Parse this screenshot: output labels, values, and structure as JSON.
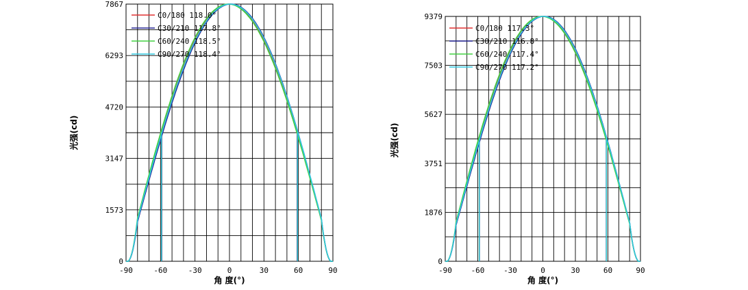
{
  "chart_data": [
    {
      "type": "line",
      "title": "",
      "xlabel": "角 度(°)",
      "ylabel": "光强(cd)",
      "xlim": [
        -90,
        90
      ],
      "ylim": [
        0,
        7867
      ],
      "x_ticks": [
        -90,
        -60,
        -30,
        0,
        30,
        60,
        90
      ],
      "y_ticks": [
        0,
        1573,
        3147,
        4720,
        6293,
        7867
      ],
      "grid": true,
      "legend_position": "top-left",
      "peak": 7867,
      "series": [
        {
          "name": "C0/180 118.0°",
          "color": "#e03030",
          "beam_angle": 118.0
        },
        {
          "name": "C30/210 117.8°",
          "color": "#202090",
          "beam_angle": 117.8
        },
        {
          "name": "C60/240 118.5°",
          "color": "#40d040",
          "beam_angle": 118.5
        },
        {
          "name": "C90/270 118.4°",
          "color": "#30c8e0",
          "beam_angle": 118.4
        }
      ]
    },
    {
      "type": "line",
      "title": "",
      "xlabel": "角 度(°)",
      "ylabel": "光强(cd)",
      "xlim": [
        -90,
        90
      ],
      "ylim": [
        0,
        9379
      ],
      "x_ticks": [
        -90,
        -60,
        -30,
        0,
        30,
        60,
        90
      ],
      "y_ticks": [
        0,
        1876,
        3751,
        5627,
        7503,
        9379
      ],
      "grid": true,
      "legend_position": "top-left",
      "peak": 9379,
      "series": [
        {
          "name": "C0/180 117.3°",
          "color": "#e03030",
          "beam_angle": 117.3
        },
        {
          "name": "C30/210 116.8°",
          "color": "#202090",
          "beam_angle": 116.8
        },
        {
          "name": "C60/240 117.4°",
          "color": "#40d040",
          "beam_angle": 117.4
        },
        {
          "name": "C90/270 117.2°",
          "color": "#30c8e0",
          "beam_angle": 117.2
        }
      ]
    }
  ]
}
